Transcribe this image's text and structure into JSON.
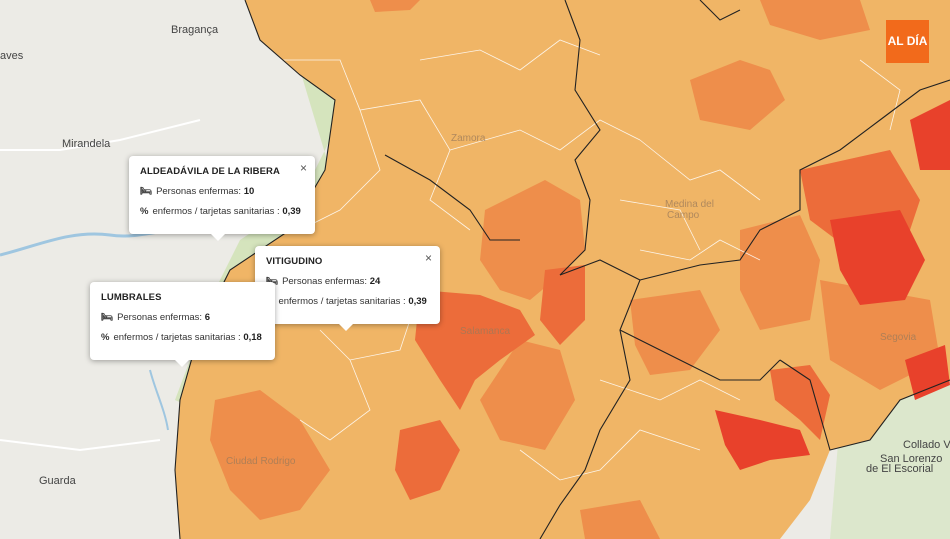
{
  "map": {
    "colors": {
      "outside": "#ecebe6",
      "low": "#f0b566",
      "mid": "#ee8e4b",
      "high": "#ec6c3a",
      "highest": "#e8412b",
      "province_border": "#222222",
      "municipality_border": "#ffffff",
      "water": "#9fc6e0",
      "green": "#cfe2b3"
    },
    "places": {
      "braganca": "Bragança",
      "aves": "aves",
      "mirandela": "Mirandela",
      "guarda": "Guarda",
      "collado": "Collado Villa",
      "san_lorenzo_1": "San Lorenzo",
      "san_lorenzo_2": "de El Escorial",
      "zamora": "Zamora",
      "salamanca": "Salamanca",
      "medina": "Medina del",
      "medina2": "Campo",
      "ciudad_rodrigo": "Ciudad Rodrigo",
      "segovia": "Segovia"
    }
  },
  "popups": {
    "aldeadavila": {
      "title": "ALDEADÁVILA DE LA RIBERA",
      "sick_label": "Personas enfermas:",
      "sick": "10",
      "pct_label": "enfermos / tarjetas sanitarias :",
      "pct": "0,39",
      "close": "×",
      "bed_icon": "🛏",
      "pct_icon": "%"
    },
    "vitigudino": {
      "title": "VITIGUDINO",
      "sick_label": "Personas enfermas:",
      "sick": "24",
      "pct_label": "enfermos / tarjetas sanitarias :",
      "pct": "0,39",
      "close": "×",
      "bed_icon": "🛏",
      "pct_icon": "%"
    },
    "lumbrales": {
      "title": "LUMBRALES",
      "sick_label": "Personas enfermas:",
      "sick": "6",
      "pct_label": "enfermos / tarjetas sanitarias :",
      "pct": "0,18",
      "bed_icon": "🛏",
      "pct_icon": "%"
    }
  },
  "logo": {
    "text": "AL DÍA"
  }
}
